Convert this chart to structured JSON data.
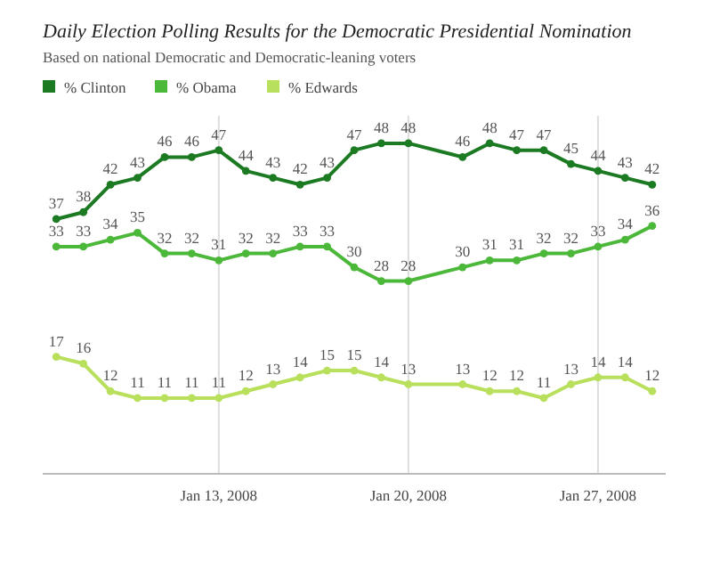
{
  "chart_data": {
    "type": "line",
    "title": "Daily Election Polling Results for the Democratic Presidential Nomination",
    "subtitle": "Based on national Democratic and Democratic-leaning voters",
    "x": [
      "2008-01-07",
      "2008-01-08",
      "2008-01-09",
      "2008-01-10",
      "2008-01-11",
      "2008-01-12",
      "2008-01-13",
      "2008-01-14",
      "2008-01-15",
      "2008-01-16",
      "2008-01-17",
      "2008-01-18",
      "2008-01-19",
      "2008-01-20",
      "2008-01-22",
      "2008-01-23",
      "2008-01-24",
      "2008-01-25",
      "2008-01-26",
      "2008-01-27",
      "2008-01-28",
      "2008-01-29"
    ],
    "series": [
      {
        "name": "% Clinton",
        "color": "#1b7a22",
        "values": [
          37,
          38,
          42,
          43,
          46,
          46,
          47,
          44,
          43,
          42,
          43,
          47,
          48,
          48,
          46,
          48,
          47,
          47,
          45,
          44,
          43,
          42
        ]
      },
      {
        "name": "% Obama",
        "color": "#4cb83a",
        "values": [
          33,
          33,
          34,
          35,
          32,
          32,
          31,
          32,
          32,
          33,
          33,
          30,
          28,
          28,
          30,
          31,
          31,
          32,
          32,
          33,
          34,
          36
        ]
      },
      {
        "name": "% Edwards",
        "color": "#b8e05c",
        "values": [
          17,
          16,
          12,
          11,
          11,
          11,
          11,
          12,
          13,
          14,
          15,
          15,
          14,
          13,
          13,
          12,
          12,
          11,
          13,
          14,
          14,
          12
        ]
      }
    ],
    "xlim": [
      "2008-01-06T12:00",
      "2008-01-29T12:00"
    ],
    "xticks": [
      {
        "value": "2008-01-13",
        "label": "Jan 13, 2008"
      },
      {
        "value": "2008-01-20",
        "label": "Jan 20, 2008"
      },
      {
        "value": "2008-01-27",
        "label": "Jan 27, 2008"
      }
    ],
    "ylim": [
      0,
      52
    ],
    "tick_labels": "x",
    "grid": "x",
    "legend": "top left",
    "marker": "circle",
    "line_style": "solid",
    "data_labels": true
  }
}
